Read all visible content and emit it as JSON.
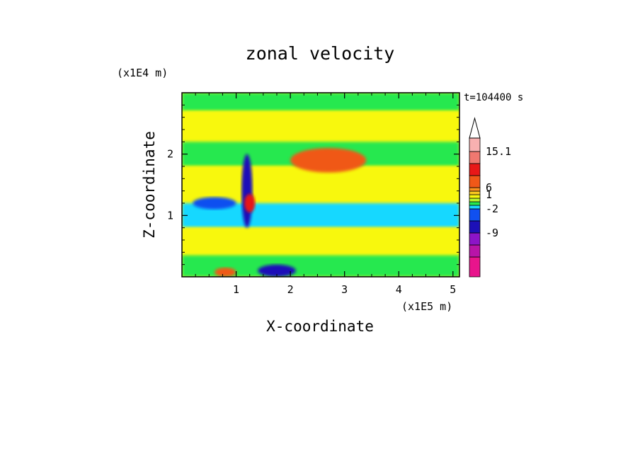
{
  "chart_data": {
    "type": "heatmap",
    "title": "zonal velocity",
    "xlabel": "X-coordinate",
    "ylabel": "Z-coordinate",
    "x_unit": "(x1E5 m)",
    "y_unit": "(x1E4 m)",
    "time_label": "t=104400 s",
    "xlim": [
      0,
      5.12
    ],
    "ylim": [
      0,
      3.0
    ],
    "x_ticks": [
      1,
      2,
      3,
      4,
      5
    ],
    "y_ticks": [
      1,
      2
    ],
    "colorbar": {
      "labels": [
        "15.1",
        "6",
        "1",
        "-2",
        "-9"
      ],
      "label_values": [
        15.1,
        6,
        1,
        -2,
        -9
      ],
      "colors": [
        "#e8148c",
        "#b814a8",
        "#8c14c8",
        "#1c10b8",
        "#1050f0",
        "#18d8ff",
        "#28e850",
        "#b8f830",
        "#f8f810",
        "#f8c820",
        "#f89020",
        "#f05818",
        "#e81818",
        "#f07870",
        "#f8b0b0"
      ]
    },
    "field_bands": [
      {
        "z": [
          2.7,
          3.0
        ],
        "value": -0.5
      },
      {
        "z": [
          2.2,
          2.7
        ],
        "value": 0.4
      },
      {
        "z": [
          1.8,
          2.2
        ],
        "value": -0.8
      },
      {
        "z": [
          1.2,
          1.8
        ],
        "value": 0.2
      },
      {
        "z": [
          0.8,
          1.2
        ],
        "value": -1.2
      },
      {
        "z": [
          0.35,
          0.8
        ],
        "value": 0.3
      },
      {
        "z": [
          0.0,
          0.35
        ],
        "value": -0.6
      }
    ],
    "features": [
      {
        "kind": "jet",
        "x": [
          0.6,
          1.0
        ],
        "z": [
          0.0,
          0.15
        ],
        "value": 4.0
      },
      {
        "kind": "jet",
        "x": [
          2.0,
          3.4
        ],
        "z": [
          1.7,
          2.1
        ],
        "value": 2.5
      },
      {
        "kind": "jet",
        "x": [
          0.2,
          1.0
        ],
        "z": [
          1.1,
          1.3
        ],
        "value": -3.5
      },
      {
        "kind": "jet",
        "x": [
          1.1,
          1.3
        ],
        "z": [
          0.8,
          2.0
        ],
        "value": -7.0
      },
      {
        "kind": "jet",
        "x": [
          1.15,
          1.35
        ],
        "z": [
          1.05,
          1.35
        ],
        "value": 6.0
      },
      {
        "kind": "jet",
        "x": [
          1.4,
          2.1
        ],
        "z": [
          0.0,
          0.2
        ],
        "value": -6.0
      }
    ]
  }
}
